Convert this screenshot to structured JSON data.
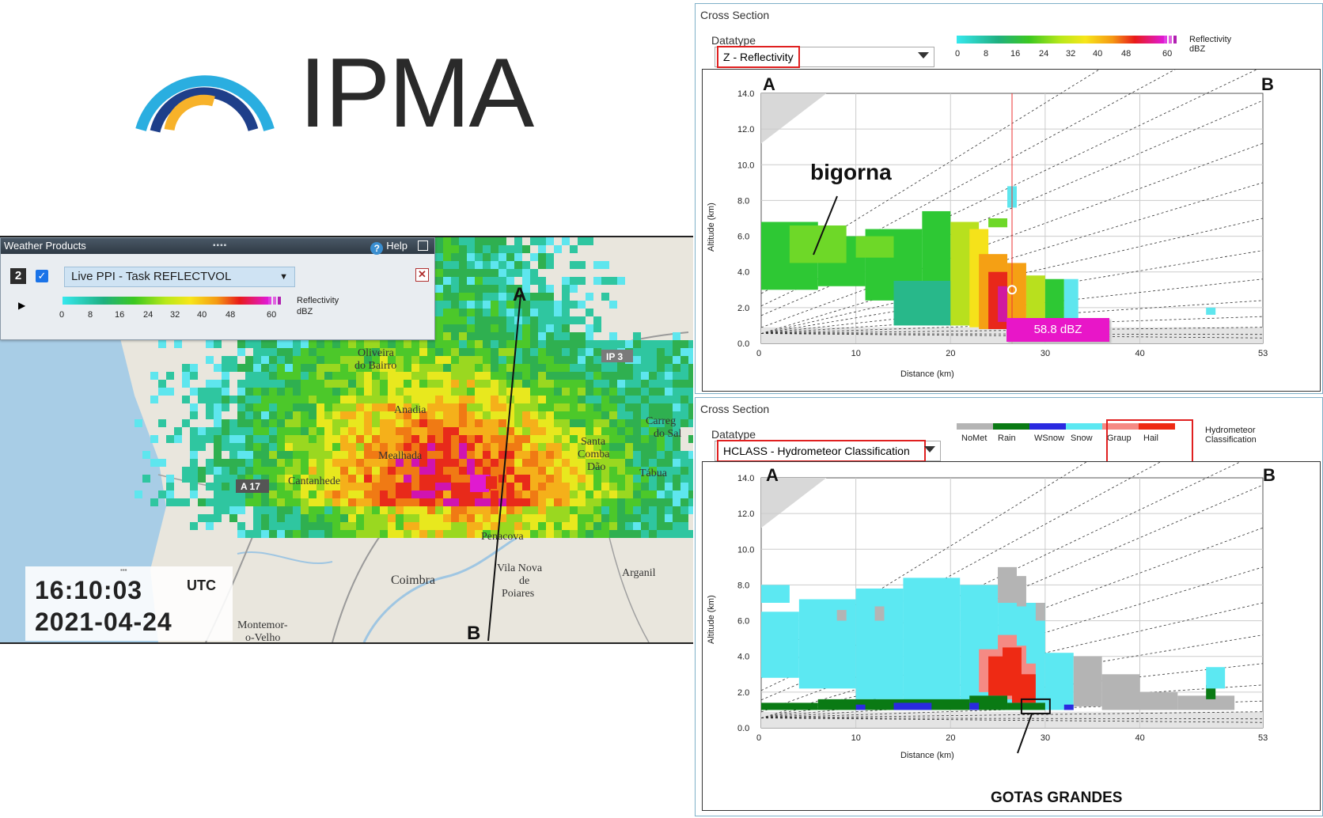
{
  "logo": {
    "text": "IPMA"
  },
  "map": {
    "towns": [
      "Oliveira",
      "do Bairro",
      "Anadia",
      "Mealhada",
      "Cantanhede",
      "Penacova",
      "Vila Nova",
      "de",
      "Poiares",
      "Coimbra",
      "Arganil",
      "Santa",
      "Comba",
      "Dão",
      "Tábua",
      "Carreg",
      "do Sal",
      "Montemor-",
      "o-Velho"
    ],
    "roads": [
      "IP 3",
      "A 17"
    ],
    "transect": {
      "start": "A",
      "end": "B"
    }
  },
  "weather_products": {
    "title": "Weather Products",
    "help": "Help",
    "layer_number": "2",
    "product": "Live PPI - Task REFLECTVOL",
    "scale_ticks": [
      "0",
      "8",
      "16",
      "24",
      "32",
      "40",
      "48",
      "60"
    ],
    "scale_unit_1": "Reflectivity",
    "scale_unit_2": "dBZ"
  },
  "time": {
    "hms": "16:10:03",
    "zone": "UTC",
    "date": "2021-04-24"
  },
  "xs_top": {
    "title": "Cross Section",
    "datatype_label": "Datatype",
    "datatype": "Z - Reflectivity",
    "scale_ticks": [
      "0",
      "8",
      "16",
      "24",
      "32",
      "40",
      "48",
      "60"
    ],
    "unit_1": "Reflectivity",
    "unit_2": "dBZ",
    "label_a": "A",
    "label_b": "B",
    "annotation": "bigorna",
    "probe_value": "58.8 dBZ",
    "xlabel": "Distance (km)",
    "ylabel": "Altitude (km)",
    "x_ticks": [
      "0",
      "10",
      "20",
      "30",
      "40",
      "53"
    ],
    "y_ticks": [
      "0.0",
      "2.0",
      "4.0",
      "6.0",
      "8.0",
      "10.0",
      "12.0",
      "14.0"
    ]
  },
  "xs_bottom": {
    "title": "Cross Section",
    "datatype_label": "Datatype",
    "datatype": "HCLASS - Hydrometeor Classification",
    "classes": [
      "NoMet",
      "Rain",
      "WSnow",
      "Snow",
      "Graup",
      "Hail"
    ],
    "class_colors": [
      "#b4b4b4",
      "#0a7a14",
      "#2a2ae0",
      "#5ce8f2",
      "#f58a84",
      "#ee2a14"
    ],
    "unit_1": "Hydrometeor",
    "unit_2": "Classification",
    "label_a": "A",
    "label_b": "B",
    "annotation": "GOTAS GRANDES",
    "xlabel": "Distance (km)",
    "ylabel": "Altitude (km)",
    "x_ticks": [
      "0",
      "10",
      "20",
      "30",
      "40",
      "53"
    ],
    "y_ticks": [
      "0.0",
      "2.0",
      "4.0",
      "6.0",
      "8.0",
      "10.0",
      "12.0",
      "14.0"
    ]
  }
}
